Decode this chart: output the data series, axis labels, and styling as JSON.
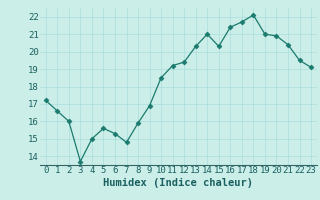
{
  "xlabel": "Humidex (Indice chaleur)",
  "x": [
    0,
    1,
    2,
    3,
    4,
    5,
    6,
    7,
    8,
    9,
    10,
    11,
    12,
    13,
    14,
    15,
    16,
    17,
    18,
    19,
    20,
    21,
    22,
    23
  ],
  "y": [
    17.2,
    16.6,
    16.0,
    13.7,
    15.0,
    15.6,
    15.3,
    14.8,
    15.9,
    16.9,
    18.5,
    19.2,
    19.4,
    20.3,
    21.0,
    20.3,
    21.4,
    21.7,
    22.1,
    21.0,
    20.9,
    20.4,
    19.5,
    19.1
  ],
  "line_color": "#1a7a6e",
  "marker": "D",
  "marker_size": 2.5,
  "bg_color": "#cceee8",
  "grid_color": "#aadddd",
  "ylim": [
    13.5,
    22.5
  ],
  "xlim": [
    -0.5,
    23.5
  ],
  "yticks": [
    14,
    15,
    16,
    17,
    18,
    19,
    20,
    21,
    22
  ],
  "xticks": [
    0,
    1,
    2,
    3,
    4,
    5,
    6,
    7,
    8,
    9,
    10,
    11,
    12,
    13,
    14,
    15,
    16,
    17,
    18,
    19,
    20,
    21,
    22,
    23
  ],
  "tick_fontsize": 6.5,
  "xlabel_fontsize": 7.5,
  "tick_color": "#1a6060",
  "label_color": "#1a6060"
}
